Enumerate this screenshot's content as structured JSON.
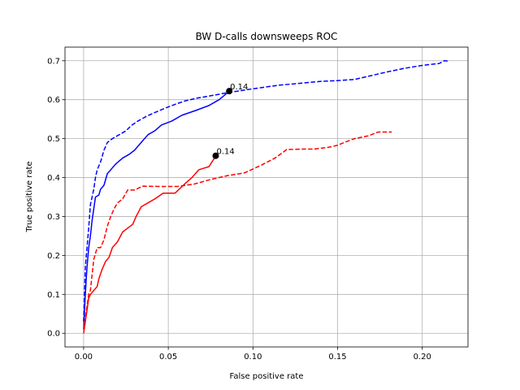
{
  "chart_data": {
    "type": "line",
    "title": "BW D-calls downsweeps ROC",
    "xlabel": "False positive rate",
    "ylabel": "True positive rate",
    "xlim": [
      -0.011,
      0.227
    ],
    "ylim": [
      -0.035,
      0.735
    ],
    "xticks": [
      0.0,
      0.05,
      0.1,
      0.15,
      0.2
    ],
    "xtick_labels": [
      "0.00",
      "0.05",
      "0.10",
      "0.15",
      "0.20"
    ],
    "yticks": [
      0.0,
      0.1,
      0.2,
      0.3,
      0.4,
      0.5,
      0.6,
      0.7
    ],
    "ytick_labels": [
      "0.0",
      "0.1",
      "0.2",
      "0.3",
      "0.4",
      "0.5",
      "0.6",
      "0.7"
    ],
    "grid": true,
    "series": [
      {
        "color": "#0000ff",
        "dash": "solid",
        "points": [
          [
            0.0,
            0.01
          ],
          [
            0.001,
            0.1
          ],
          [
            0.002,
            0.17
          ],
          [
            0.003,
            0.22
          ],
          [
            0.004,
            0.25
          ],
          [
            0.005,
            0.29
          ],
          [
            0.006,
            0.32
          ],
          [
            0.007,
            0.35
          ],
          [
            0.009,
            0.355
          ],
          [
            0.01,
            0.37
          ],
          [
            0.012,
            0.38
          ],
          [
            0.014,
            0.41
          ],
          [
            0.017,
            0.425
          ],
          [
            0.019,
            0.435
          ],
          [
            0.023,
            0.45
          ],
          [
            0.027,
            0.46
          ],
          [
            0.03,
            0.47
          ],
          [
            0.034,
            0.49
          ],
          [
            0.038,
            0.51
          ],
          [
            0.042,
            0.52
          ],
          [
            0.046,
            0.535
          ],
          [
            0.052,
            0.545
          ],
          [
            0.058,
            0.56
          ],
          [
            0.066,
            0.572
          ],
          [
            0.074,
            0.585
          ],
          [
            0.08,
            0.6
          ],
          [
            0.085,
            0.618
          ]
        ]
      },
      {
        "color": "#0000ff",
        "dash": "dashed",
        "points": [
          [
            0.0,
            0.03
          ],
          [
            0.001,
            0.17
          ],
          [
            0.002,
            0.22
          ],
          [
            0.003,
            0.27
          ],
          [
            0.004,
            0.33
          ],
          [
            0.005,
            0.35
          ],
          [
            0.006,
            0.37
          ],
          [
            0.007,
            0.4
          ],
          [
            0.008,
            0.42
          ],
          [
            0.01,
            0.44
          ],
          [
            0.012,
            0.47
          ],
          [
            0.014,
            0.49
          ],
          [
            0.017,
            0.5
          ],
          [
            0.021,
            0.51
          ],
          [
            0.025,
            0.52
          ],
          [
            0.028,
            0.533
          ],
          [
            0.032,
            0.545
          ],
          [
            0.037,
            0.557
          ],
          [
            0.042,
            0.567
          ],
          [
            0.048,
            0.578
          ],
          [
            0.054,
            0.588
          ],
          [
            0.06,
            0.597
          ],
          [
            0.067,
            0.604
          ],
          [
            0.075,
            0.61
          ],
          [
            0.085,
            0.618
          ],
          [
            0.1,
            0.628
          ],
          [
            0.115,
            0.637
          ],
          [
            0.13,
            0.643
          ],
          [
            0.14,
            0.647
          ],
          [
            0.15,
            0.649
          ],
          [
            0.16,
            0.652
          ],
          [
            0.17,
            0.662
          ],
          [
            0.18,
            0.672
          ],
          [
            0.19,
            0.681
          ],
          [
            0.2,
            0.688
          ],
          [
            0.21,
            0.693
          ],
          [
            0.213,
            0.7
          ],
          [
            0.216,
            0.699
          ]
        ]
      },
      {
        "color": "#ff0000",
        "dash": "solid",
        "points": [
          [
            0.0,
            0.0
          ],
          [
            0.001,
            0.03
          ],
          [
            0.002,
            0.06
          ],
          [
            0.003,
            0.09
          ],
          [
            0.004,
            0.1
          ],
          [
            0.006,
            0.11
          ],
          [
            0.008,
            0.12
          ],
          [
            0.009,
            0.14
          ],
          [
            0.011,
            0.165
          ],
          [
            0.013,
            0.185
          ],
          [
            0.015,
            0.195
          ],
          [
            0.017,
            0.22
          ],
          [
            0.02,
            0.235
          ],
          [
            0.023,
            0.26
          ],
          [
            0.026,
            0.27
          ],
          [
            0.029,
            0.28
          ],
          [
            0.031,
            0.3
          ],
          [
            0.034,
            0.325
          ],
          [
            0.038,
            0.335
          ],
          [
            0.042,
            0.345
          ],
          [
            0.047,
            0.36
          ],
          [
            0.054,
            0.36
          ],
          [
            0.06,
            0.385
          ],
          [
            0.064,
            0.4
          ],
          [
            0.068,
            0.42
          ],
          [
            0.074,
            0.428
          ],
          [
            0.078,
            0.455
          ]
        ]
      },
      {
        "color": "#ff0000",
        "dash": "dashed",
        "points": [
          [
            0.0,
            0.01
          ],
          [
            0.001,
            0.04
          ],
          [
            0.002,
            0.07
          ],
          [
            0.003,
            0.1
          ],
          [
            0.004,
            0.11
          ],
          [
            0.005,
            0.15
          ],
          [
            0.006,
            0.19
          ],
          [
            0.008,
            0.22
          ],
          [
            0.01,
            0.22
          ],
          [
            0.012,
            0.24
          ],
          [
            0.014,
            0.275
          ],
          [
            0.016,
            0.3
          ],
          [
            0.018,
            0.32
          ],
          [
            0.02,
            0.335
          ],
          [
            0.023,
            0.345
          ],
          [
            0.026,
            0.368
          ],
          [
            0.03,
            0.368
          ],
          [
            0.035,
            0.378
          ],
          [
            0.045,
            0.377
          ],
          [
            0.055,
            0.377
          ],
          [
            0.065,
            0.383
          ],
          [
            0.075,
            0.395
          ],
          [
            0.085,
            0.405
          ],
          [
            0.095,
            0.412
          ],
          [
            0.105,
            0.432
          ],
          [
            0.113,
            0.45
          ],
          [
            0.12,
            0.472
          ],
          [
            0.128,
            0.473
          ],
          [
            0.136,
            0.473
          ],
          [
            0.145,
            0.478
          ],
          [
            0.15,
            0.483
          ],
          [
            0.155,
            0.492
          ],
          [
            0.16,
            0.5
          ],
          [
            0.168,
            0.507
          ],
          [
            0.174,
            0.517
          ],
          [
            0.182,
            0.517
          ]
        ]
      }
    ],
    "markers": [
      {
        "x": 0.086,
        "y": 0.622,
        "label": "0.14"
      },
      {
        "x": 0.078,
        "y": 0.456,
        "label": "0.14"
      }
    ]
  }
}
